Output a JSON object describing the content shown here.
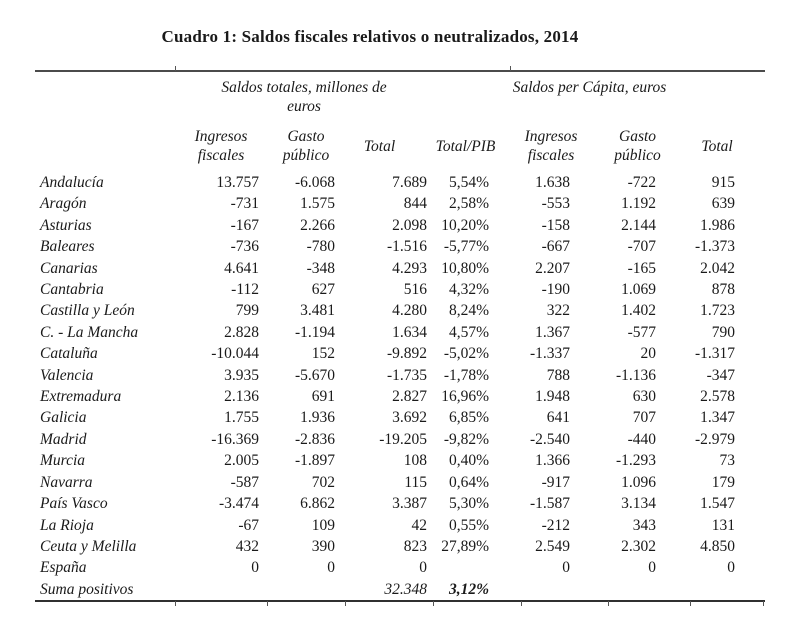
{
  "title": "Cuadro 1: Saldos fiscales relativos o neutralizados, 2014",
  "table": {
    "group_headers": {
      "totals": "Saldos totales, millones de\neuros",
      "per_capita": "Saldos per Cápita, euros"
    },
    "column_headers": [
      "Ingresos\nfiscales",
      "Gasto\npúblico",
      "Total",
      "Total/PIB",
      "Ingresos\nfiscales",
      "Gasto\npúblico",
      "Total"
    ],
    "rows": [
      {
        "label": "Andalucía",
        "values": [
          "13.757",
          "-6.068",
          "7.689",
          "5,54%",
          "1.638",
          "-722",
          "915"
        ]
      },
      {
        "label": "Aragón",
        "values": [
          "-731",
          "1.575",
          "844",
          "2,58%",
          "-553",
          "1.192",
          "639"
        ]
      },
      {
        "label": "Asturias",
        "values": [
          "-167",
          "2.266",
          "2.098",
          "10,20%",
          "-158",
          "2.144",
          "1.986"
        ]
      },
      {
        "label": "Baleares",
        "values": [
          "-736",
          "-780",
          "-1.516",
          "-5,77%",
          "-667",
          "-707",
          "-1.373"
        ]
      },
      {
        "label": "Canarias",
        "values": [
          "4.641",
          "-348",
          "4.293",
          "10,80%",
          "2.207",
          "-165",
          "2.042"
        ]
      },
      {
        "label": "Cantabria",
        "values": [
          "-112",
          "627",
          "516",
          "4,32%",
          "-190",
          "1.069",
          "878"
        ]
      },
      {
        "label": "Castilla y León",
        "values": [
          "799",
          "3.481",
          "4.280",
          "8,24%",
          "322",
          "1.402",
          "1.723"
        ]
      },
      {
        "label": "C. - La Mancha",
        "values": [
          "2.828",
          "-1.194",
          "1.634",
          "4,57%",
          "1.367",
          "-577",
          "790"
        ]
      },
      {
        "label": "Cataluña",
        "values": [
          "-10.044",
          "152",
          "-9.892",
          "-5,02%",
          "-1.337",
          "20",
          "-1.317"
        ]
      },
      {
        "label": "Valencia",
        "values": [
          "3.935",
          "-5.670",
          "-1.735",
          "-1,78%",
          "788",
          "-1.136",
          "-347"
        ]
      },
      {
        "label": "Extremadura",
        "values": [
          "2.136",
          "691",
          "2.827",
          "16,96%",
          "1.948",
          "630",
          "2.578"
        ]
      },
      {
        "label": "Galicia",
        "values": [
          "1.755",
          "1.936",
          "3.692",
          "6,85%",
          "641",
          "707",
          "1.347"
        ]
      },
      {
        "label": "Madrid",
        "values": [
          "-16.369",
          "-2.836",
          "-19.205",
          "-9,82%",
          "-2.540",
          "-440",
          "-2.979"
        ]
      },
      {
        "label": "Murcia",
        "values": [
          "2.005",
          "-1.897",
          "108",
          "0,40%",
          "1.366",
          "-1.293",
          "73"
        ]
      },
      {
        "label": "Navarra",
        "values": [
          "-587",
          "702",
          "115",
          "0,64%",
          "-917",
          "1.096",
          "179"
        ]
      },
      {
        "label": "País Vasco",
        "values": [
          "-3.474",
          "6.862",
          "3.387",
          "5,30%",
          "-1.587",
          "3.134",
          "1.547"
        ]
      },
      {
        "label": "La Rioja",
        "values": [
          "-67",
          "109",
          "42",
          "0,55%",
          "-212",
          "343",
          "131"
        ]
      },
      {
        "label": "Ceuta y Melilla",
        "values": [
          "432",
          "390",
          "823",
          "27,89%",
          "2.549",
          "2.302",
          "4.850"
        ]
      },
      {
        "label": "España",
        "values": [
          "0",
          "0",
          "0",
          "",
          "0",
          "0",
          "0"
        ]
      },
      {
        "label": "Suma positivos",
        "values": [
          "",
          "",
          "32.348",
          "3,12%",
          "",
          "",
          ""
        ],
        "summary": true
      }
    ]
  }
}
